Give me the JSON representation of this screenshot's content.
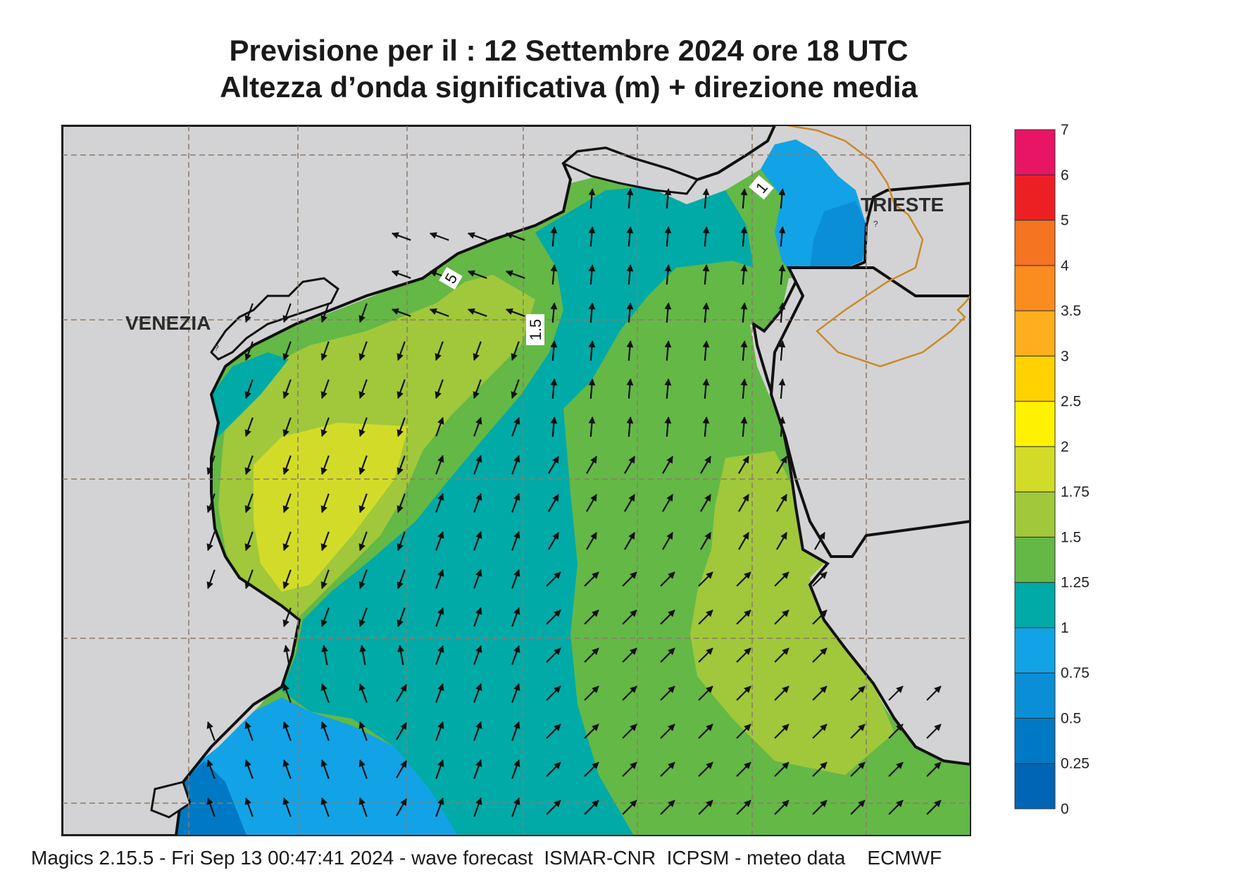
{
  "header": {
    "title_line1": "Previsione per il  :  12 Settembre 2024   ore 18 UTC",
    "title_line2": "Altezza d’onda significativa (m) + direzione media"
  },
  "map": {
    "places": [
      "VENEZIA",
      "TRIESTE"
    ],
    "contour_labels": [
      "1",
      "1.5",
      "5"
    ],
    "unknown_marks": [
      "?",
      "?"
    ]
  },
  "legend": {
    "labels": [
      "0",
      "0.25",
      "0.5",
      "0.75",
      "1",
      "1.25",
      "1.5",
      "1.75",
      "2",
      "2.5",
      "3",
      "3.5",
      "4",
      "5",
      "6",
      "7"
    ],
    "colors": [
      "#0065b4",
      "#0079c4",
      "#0a8fd6",
      "#12a3e6",
      "#00aaa7",
      "#64b846",
      "#a0c83a",
      "#d2dc28",
      "#fff200",
      "#ffd200",
      "#ffae1e",
      "#fb8c1e",
      "#f47422",
      "#ec2024",
      "#e81464"
    ]
  },
  "footer": {
    "text": "Magics 2.15.5 - Fri Sep 13 00:47:41 2024 - wave forecast  ISMAR-CNR  ICPSM - meteo data    ECMWF"
  }
}
